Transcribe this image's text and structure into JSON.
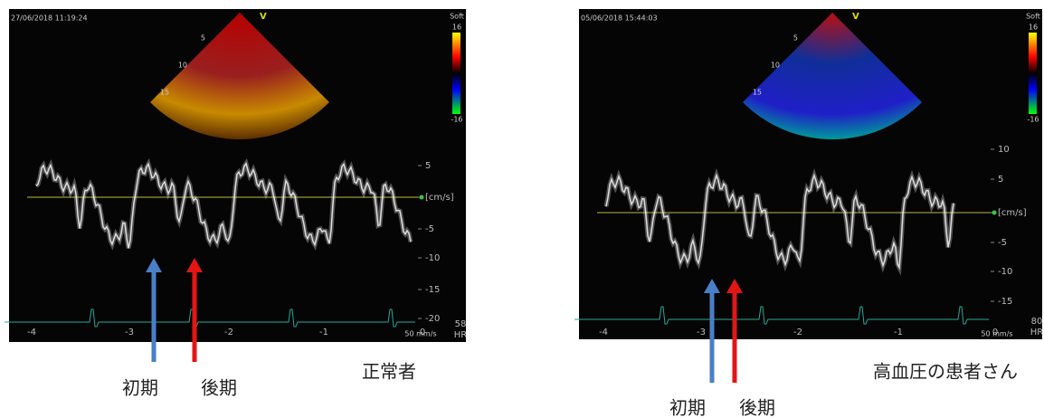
{
  "panels": [
    {
      "timestamp": "27/06/2018 11:19:24",
      "mode": "V",
      "depth_labels": [
        "5",
        "10",
        "15"
      ],
      "scale_label": "Soft",
      "scale_max": "16",
      "scale_min": "-16",
      "velocity_ticks": [
        "5",
        "[cm/s]",
        "-5",
        "-10",
        "-15",
        "-20"
      ],
      "time_ticks": [
        "-4",
        "-3",
        "-2",
        "-1",
        "0"
      ],
      "sweep_speed": "50 mm/s",
      "heart_rate": "58",
      "heart_rate_label": "HR",
      "arrow_labels": [
        "初期",
        "後期"
      ],
      "caption": "正常者"
    },
    {
      "timestamp": "05/06/2018 15:44:03",
      "mode": "V",
      "depth_labels": [
        "5",
        "10",
        "15"
      ],
      "scale_label": "Soft",
      "scale_max": "16",
      "scale_min": "-16",
      "velocity_ticks": [
        "10",
        "5",
        "[cm/s]",
        "-5",
        "-10",
        "-15"
      ],
      "time_ticks": [
        "-4",
        "-3",
        "-2",
        "-1",
        "0"
      ],
      "sweep_speed": "50 mm/s",
      "heart_rate": "80",
      "heart_rate_label": "HR",
      "arrow_labels": [
        "初期",
        "後期"
      ],
      "caption": "高血圧の患者さん"
    }
  ]
}
